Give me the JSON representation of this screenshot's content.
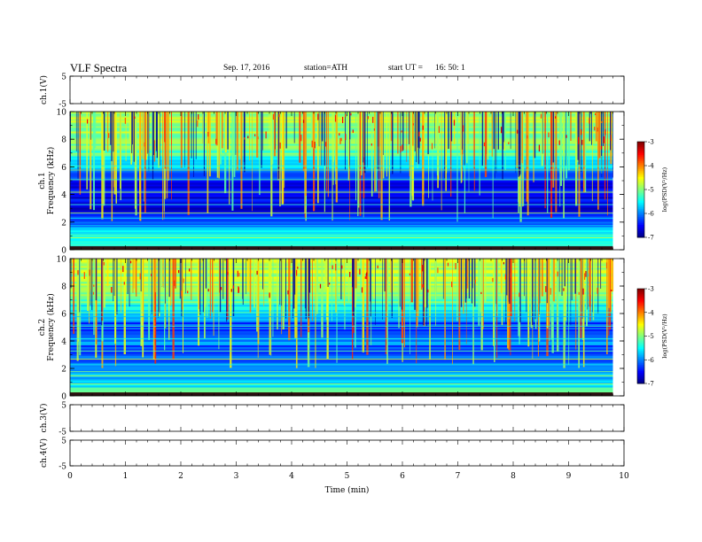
{
  "header": {
    "title": "VLF  Spectra",
    "date": "Sep. 17, 2016",
    "station": "station=ATH",
    "start_label": "start  UT  =",
    "start_value": "16: 50: 1"
  },
  "chart_data": [
    {
      "type": "line",
      "panel": "ch.1 waveform",
      "ylabel": "ch.1(V)",
      "ylim": [
        -5,
        5
      ],
      "yticks": [
        "5",
        "-5"
      ],
      "x": [
        0.0,
        0.5,
        1.0,
        1.5,
        2.0,
        2.5,
        3.0,
        3.5,
        4.0,
        4.5,
        5.0,
        5.5,
        6.0,
        6.5,
        7.0,
        7.5,
        8.0,
        8.5,
        9.0,
        9.5,
        9.8
      ],
      "values": [
        -1.4,
        -1.6,
        -1.3,
        -1.7,
        -1.5,
        -1.4,
        -1.6,
        -1.5,
        -1.3,
        -1.6,
        -1.5,
        -1.4,
        -1.6,
        -1.7,
        -1.5,
        -1.4,
        -1.6,
        -1.5,
        -1.3,
        -1.6,
        -1.7
      ]
    },
    {
      "type": "heatmap",
      "panel": "ch.1 spectrogram",
      "ylabel": "ch.1",
      "ylabel2": "Frequency  (kHz)",
      "ylim": [
        0,
        10
      ],
      "yticks": [
        "0",
        "2",
        "4",
        "6",
        "8",
        "10"
      ],
      "colorbar": {
        "label": "log(PSD(V²/Hz)",
        "ticks": [
          "-3",
          "-4",
          "-5",
          "-6",
          "-7"
        ],
        "range": [
          -7,
          -3
        ]
      },
      "freq_profile_khz": [
        0,
        1,
        2,
        3,
        4,
        5,
        6,
        7,
        8,
        9,
        10
      ],
      "mean_logpsd": [
        -5.0,
        -5.5,
        -6.2,
        -6.6,
        -6.5,
        -6.5,
        -5.8,
        -5.2,
        -5.0,
        -4.9,
        -4.8
      ]
    },
    {
      "type": "heatmap",
      "panel": "ch.2 spectrogram",
      "ylabel": "ch.2",
      "ylabel2": "Frequency  (kHz)",
      "ylim": [
        0,
        10
      ],
      "yticks": [
        "0",
        "2",
        "4",
        "6",
        "8",
        "10"
      ],
      "colorbar": {
        "label": "log(PSD(V²/Hz)",
        "ticks": [
          "-3",
          "-4",
          "-5",
          "-6",
          "-7"
        ],
        "range": [
          -7,
          -3
        ]
      },
      "freq_profile_khz": [
        0,
        1,
        2,
        3,
        4,
        5,
        6,
        7,
        8,
        9,
        10
      ],
      "mean_logpsd": [
        -5.2,
        -5.6,
        -5.9,
        -6.3,
        -6.0,
        -6.3,
        -5.8,
        -5.1,
        -4.9,
        -4.8,
        -4.7
      ]
    },
    {
      "type": "line",
      "panel": "ch.3 waveform",
      "ylabel": "ch.3(V)",
      "ylim": [
        -5,
        5
      ],
      "yticks": [
        "5",
        "-5"
      ],
      "x": [
        0,
        9.8
      ],
      "values": [
        -1.5,
        -1.5
      ]
    },
    {
      "type": "line",
      "panel": "ch.4 waveform",
      "ylabel": "ch.4(V)",
      "ylim": [
        -5,
        5
      ],
      "yticks": [
        "5",
        "-5"
      ],
      "x": [
        0,
        9.8
      ],
      "values": [
        -1.3,
        -1.3
      ]
    }
  ],
  "xaxis": {
    "label": "Time  (min)",
    "ticks": [
      "0",
      "1",
      "2",
      "3",
      "4",
      "5",
      "6",
      "7",
      "8",
      "9",
      "10"
    ],
    "xlim": [
      0,
      10
    ]
  }
}
